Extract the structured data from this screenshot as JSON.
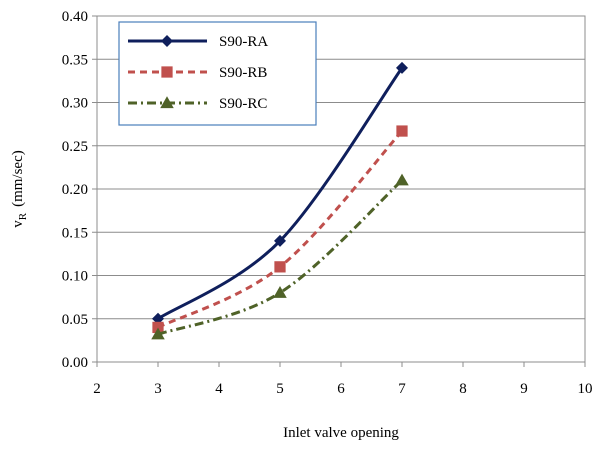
{
  "chart_data": {
    "type": "line",
    "title": "",
    "xlabel": "Inlet valve opening",
    "ylabel": "v",
    "ylabel_sub": "R",
    "ylabel_unit": "(mm/sec)",
    "xlim": [
      2,
      10
    ],
    "ylim": [
      0,
      0.4
    ],
    "x_ticks": [
      2,
      3,
      4,
      5,
      6,
      7,
      8,
      9,
      10
    ],
    "y_ticks": [
      "0.00",
      "0.05",
      "0.10",
      "0.15",
      "0.20",
      "0.25",
      "0.30",
      "0.35",
      "0.40"
    ],
    "grid": "horizontal",
    "legend_position": "top-left",
    "x": [
      3,
      5,
      7
    ],
    "series": [
      {
        "name": "S90-RA",
        "values": [
          0.05,
          0.14,
          0.34
        ],
        "color": "#0f1f5c",
        "marker": "diamond",
        "dash": "solid"
      },
      {
        "name": "S90-RB",
        "values": [
          0.04,
          0.11,
          0.267
        ],
        "color": "#c0504d",
        "marker": "square",
        "dash": "dash"
      },
      {
        "name": "S90-RC",
        "values": [
          0.032,
          0.08,
          0.21
        ],
        "color": "#4f6228",
        "marker": "triangle",
        "dash": "dashdot"
      }
    ]
  }
}
